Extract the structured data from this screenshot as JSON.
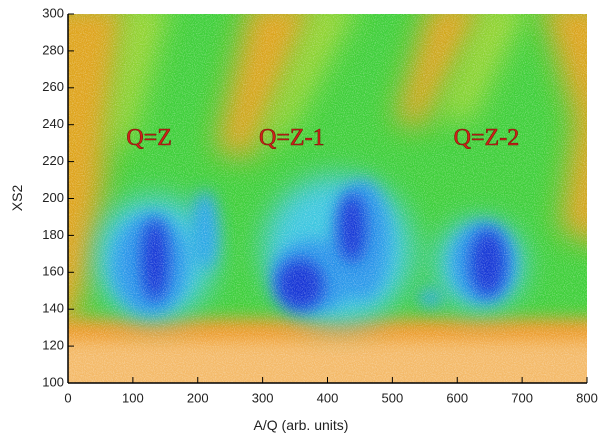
{
  "chart_data": {
    "type": "density",
    "xlabel": "A/Q (arb. units)",
    "ylabel": "XS2",
    "xlim": [
      0,
      800
    ],
    "xticks": [
      0,
      100,
      200,
      300,
      400,
      500,
      600,
      700,
      800
    ],
    "ylim": [
      100,
      300
    ],
    "yticks": [
      100,
      120,
      140,
      160,
      180,
      200,
      220,
      240,
      260,
      280,
      300
    ],
    "annotations": [
      {
        "text": "Q=Z",
        "x": 125,
        "y": 232
      },
      {
        "text": "Q=Z-1",
        "x": 345,
        "y": 232
      },
      {
        "text": "Q=Z-2",
        "x": 645,
        "y": 232
      }
    ]
  }
}
